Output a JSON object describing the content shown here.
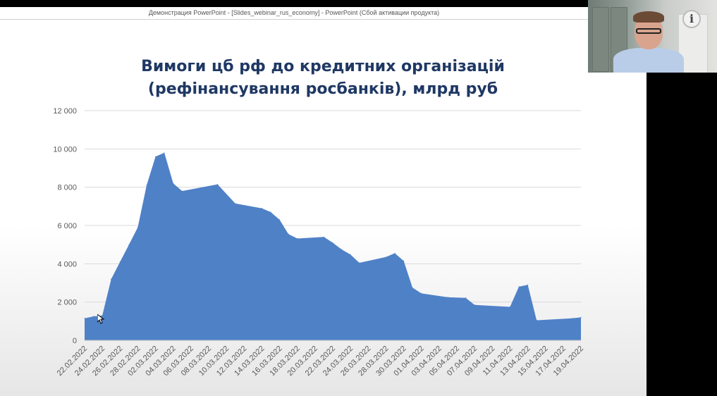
{
  "window": {
    "title": "Демонстрация PowerPoint - [Slides_webinar_rus_economy] - PowerPoint (Сбой активации продукта)"
  },
  "overlay": {
    "info_glyph": "i"
  },
  "colors": {
    "area_fill": "#4f81c7",
    "title": "#1f3864",
    "grid": "#d9d9d9"
  },
  "chart_data": {
    "type": "area",
    "title_line1": "Вимоги цб рф до кредитних організацій",
    "title_line2": "(рефінансування росбанків), млрд руб",
    "xlabel": "",
    "ylabel": "",
    "ylim": [
      0,
      12000
    ],
    "yticks": [
      "0",
      "2 000",
      "4 000",
      "6 000",
      "8 000",
      "10 000",
      "12 000"
    ],
    "grid": true,
    "legend": "none",
    "x_start": "22.02.2022",
    "x_end": "19.04.2022",
    "xtick_labels": [
      "22.02.2022",
      "24.02.2022",
      "26.02.2022",
      "28.02.2022",
      "02.03.2022",
      "04.03.2022",
      "06.03.2022",
      "08.03.2022",
      "10.03.2022",
      "12.03.2022",
      "14.03.2022",
      "16.03.2022",
      "18.03.2022",
      "20.03.2022",
      "22.03.2022",
      "24.03.2022",
      "26.03.2022",
      "28.03.2022",
      "30.03.2022",
      "01.04.2022",
      "03.04.2022",
      "05.04.2022",
      "07.04.2022",
      "09.04.2022",
      "11.04.2022",
      "13.04.2022",
      "15.04.2022",
      "17.04.2022",
      "19.04.2022"
    ],
    "points": [
      {
        "date": "22.02.2022",
        "value": 1150
      },
      {
        "date": "23.02.2022",
        "value": 1250
      },
      {
        "date": "24.02.2022",
        "value": 1300
      },
      {
        "date": "25.02.2022",
        "value": 3200
      },
      {
        "date": "26.02.2022",
        "value": 4100
      },
      {
        "date": "27.02.2022",
        "value": 5000
      },
      {
        "date": "28.02.2022",
        "value": 5900
      },
      {
        "date": "01.03.2022",
        "value": 8100
      },
      {
        "date": "02.03.2022",
        "value": 9600
      },
      {
        "date": "03.03.2022",
        "value": 9800
      },
      {
        "date": "04.03.2022",
        "value": 8200
      },
      {
        "date": "05.03.2022",
        "value": 7800
      },
      {
        "date": "09.03.2022",
        "value": 8150
      },
      {
        "date": "11.03.2022",
        "value": 7150
      },
      {
        "date": "14.03.2022",
        "value": 6900
      },
      {
        "date": "15.03.2022",
        "value": 6700
      },
      {
        "date": "16.03.2022",
        "value": 6300
      },
      {
        "date": "17.03.2022",
        "value": 5550
      },
      {
        "date": "18.03.2022",
        "value": 5320
      },
      {
        "date": "21.03.2022",
        "value": 5400
      },
      {
        "date": "22.03.2022",
        "value": 5100
      },
      {
        "date": "23.03.2022",
        "value": 4750
      },
      {
        "date": "24.03.2022",
        "value": 4480
      },
      {
        "date": "25.03.2022",
        "value": 4050
      },
      {
        "date": "28.03.2022",
        "value": 4350
      },
      {
        "date": "29.03.2022",
        "value": 4550
      },
      {
        "date": "30.03.2022",
        "value": 4150
      },
      {
        "date": "31.03.2022",
        "value": 2750
      },
      {
        "date": "01.04.2022",
        "value": 2450
      },
      {
        "date": "04.04.2022",
        "value": 2250
      },
      {
        "date": "06.04.2022",
        "value": 2220
      },
      {
        "date": "07.04.2022",
        "value": 1850
      },
      {
        "date": "11.04.2022",
        "value": 1750
      },
      {
        "date": "12.04.2022",
        "value": 2800
      },
      {
        "date": "13.04.2022",
        "value": 2900
      },
      {
        "date": "14.04.2022",
        "value": 1050
      },
      {
        "date": "18.04.2022",
        "value": 1150
      },
      {
        "date": "19.04.2022",
        "value": 1200
      }
    ]
  }
}
